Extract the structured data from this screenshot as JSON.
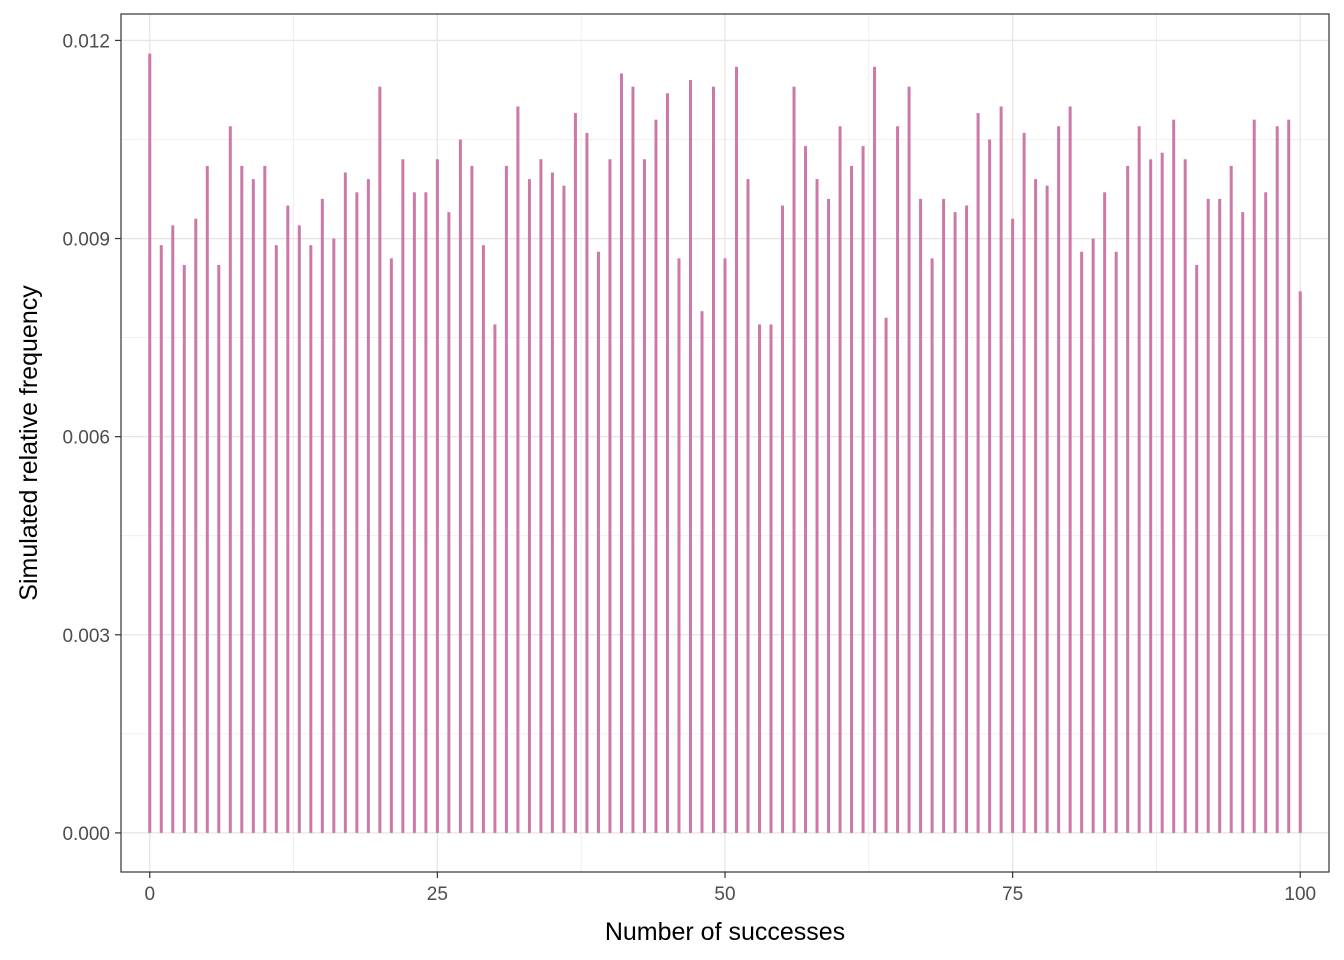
{
  "chart_data": {
    "type": "bar",
    "xlabel": "Number of successes",
    "ylabel": "Simulated relative frequency",
    "xlim": [
      -2.5,
      102.5
    ],
    "ylim": [
      -0.000592,
      0.0124
    ],
    "x_ticks": [
      "0",
      "25",
      "50",
      "75",
      "100"
    ],
    "y_ticks": [
      "0.000",
      "0.003",
      "0.006",
      "0.009",
      "0.012"
    ],
    "grid": true,
    "legend": "none",
    "bar_color": "#cc79a7",
    "x": [
      0,
      1,
      2,
      3,
      4,
      5,
      6,
      7,
      8,
      9,
      10,
      11,
      12,
      13,
      14,
      15,
      16,
      17,
      18,
      19,
      20,
      21,
      22,
      23,
      24,
      25,
      26,
      27,
      28,
      29,
      30,
      31,
      32,
      33,
      34,
      35,
      36,
      37,
      38,
      39,
      40,
      41,
      42,
      43,
      44,
      45,
      46,
      47,
      48,
      49,
      50,
      51,
      52,
      53,
      54,
      55,
      56,
      57,
      58,
      59,
      60,
      61,
      62,
      63,
      64,
      65,
      66,
      67,
      68,
      69,
      70,
      71,
      72,
      73,
      74,
      75,
      76,
      77,
      78,
      79,
      80,
      81,
      82,
      83,
      84,
      85,
      86,
      87,
      88,
      89,
      90,
      91,
      92,
      93,
      94,
      95,
      96,
      97,
      98,
      99,
      100
    ],
    "values": [
      0.0118,
      0.0089,
      0.0092,
      0.0086,
      0.0093,
      0.0101,
      0.0086,
      0.0107,
      0.0101,
      0.0099,
      0.0101,
      0.0089,
      0.0095,
      0.0092,
      0.0089,
      0.0096,
      0.009,
      0.01,
      0.0097,
      0.0099,
      0.0113,
      0.0087,
      0.0102,
      0.0097,
      0.0097,
      0.0102,
      0.0094,
      0.0105,
      0.0101,
      0.0089,
      0.0077,
      0.0101,
      0.011,
      0.0099,
      0.0102,
      0.01,
      0.0098,
      0.0109,
      0.0106,
      0.0088,
      0.0102,
      0.0115,
      0.0113,
      0.0102,
      0.0108,
      0.0112,
      0.0087,
      0.0114,
      0.0079,
      0.0113,
      0.0087,
      0.0116,
      0.0099,
      0.0077,
      0.0077,
      0.0095,
      0.0113,
      0.0104,
      0.0099,
      0.0096,
      0.0107,
      0.0101,
      0.0104,
      0.0116,
      0.0078,
      0.0107,
      0.0113,
      0.0096,
      0.0087,
      0.0096,
      0.0094,
      0.0095,
      0.0109,
      0.0105,
      0.011,
      0.0093,
      0.0106,
      0.0099,
      0.0098,
      0.0107,
      0.011,
      0.0088,
      0.009,
      0.0097,
      0.0088,
      0.0101,
      0.0107,
      0.0102,
      0.0103,
      0.0108,
      0.0102,
      0.0086,
      0.0096,
      0.0096,
      0.0101,
      0.0094,
      0.0108,
      0.0097,
      0.0107,
      0.0108,
      0.0082
    ]
  }
}
